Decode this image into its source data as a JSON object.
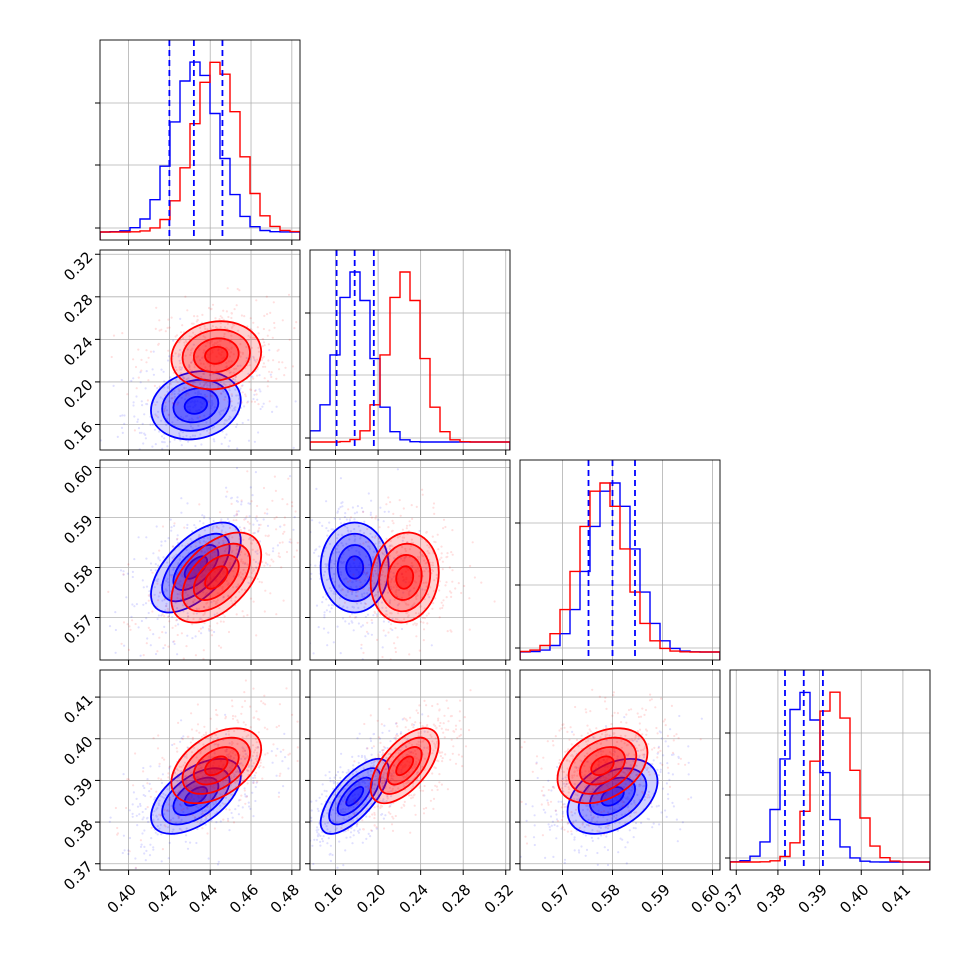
{
  "chart_data": {
    "type": "corner",
    "colors": {
      "series_a": "#0000ff",
      "series_b": "#ff0000",
      "grid": "#b0b0b0",
      "axes": "#000000"
    },
    "series": [
      {
        "color": "#0000ff",
        "means": [
          0.433,
          0.178,
          0.58,
          0.3862
        ],
        "sds": [
          0.011,
          0.016,
          0.0045,
          0.0045
        ],
        "quantiles_16_50_84": [
          [
            0.42,
            0.432,
            0.446
          ],
          [
            0.161,
            0.178,
            0.196
          ],
          [
            0.5752,
            0.58,
            0.5845
          ],
          [
            0.3817,
            0.3862,
            0.3908
          ]
        ]
      },
      {
        "color": "#ff0000",
        "means": [
          0.443,
          0.225,
          0.578,
          0.3935
        ],
        "sds": [
          0.011,
          0.016,
          0.0045,
          0.0045
        ]
      }
    ],
    "params": [
      {
        "range": [
          0.386,
          0.484
        ],
        "ticks": [
          0.4,
          0.42,
          0.44,
          0.46,
          0.48
        ],
        "tick_labels": [
          "0.40",
          "0.42",
          "0.44",
          "0.46",
          "0.48"
        ]
      },
      {
        "range": [
          0.136,
          0.324
        ],
        "ticks": [
          0.16,
          0.2,
          0.24,
          0.28,
          0.32
        ],
        "tick_labels": [
          "0.16",
          "0.20",
          "0.24",
          "0.28",
          "0.32"
        ]
      },
      {
        "range": [
          0.5615,
          0.6015
        ],
        "ticks": [
          0.57,
          0.58,
          0.59,
          0.6
        ],
        "tick_labels": [
          "0.57",
          "0.58",
          "0.59",
          "0.60"
        ]
      },
      {
        "range": [
          0.3685,
          0.4165
        ],
        "ticks": [
          0.37,
          0.38,
          0.39,
          0.4,
          0.41
        ],
        "tick_labels": [
          "0.37",
          "0.38",
          "0.39",
          "0.40",
          "0.41"
        ]
      }
    ],
    "correlations": {
      "0-1": [
        0.15,
        0.1
      ],
      "0-2": [
        0.6,
        0.5
      ],
      "0-3": [
        0.55,
        0.45
      ],
      "1-2": [
        0.0,
        0.1
      ],
      "1-3": [
        0.7,
        0.6
      ],
      "2-3": [
        0.4,
        0.35
      ]
    },
    "grid": true
  }
}
